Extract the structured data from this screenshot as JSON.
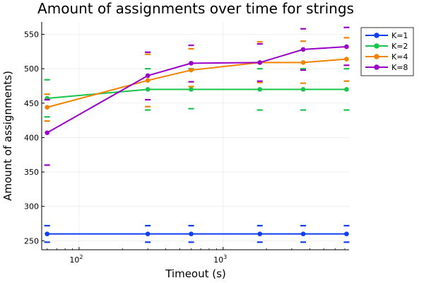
{
  "chart_data": {
    "type": "line",
    "title": "Amount of assignments over time for strings",
    "xlabel": "Timeout (s)",
    "ylabel": "Amount of assignments)",
    "xscale": "log",
    "xlim": [
      55,
      7500
    ],
    "ylim": [
      237,
      568
    ],
    "x": [
      60,
      300,
      600,
      1800,
      3600,
      7200
    ],
    "x_ticks": [
      {
        "value": 100,
        "base": "10",
        "exp": "2"
      },
      {
        "value": 1000,
        "base": "10",
        "exp": "3"
      }
    ],
    "y_ticks": [
      250,
      300,
      350,
      400,
      450,
      500,
      550
    ],
    "grid": true,
    "legend_position": "top-right",
    "series": [
      {
        "name": "K=1",
        "color": "#0f3ff2",
        "values": [
          260,
          260,
          260,
          260,
          260,
          260
        ],
        "upper": [
          272,
          272,
          272,
          272,
          272,
          272
        ],
        "lower": [
          248,
          248,
          248,
          248,
          248,
          248
        ]
      },
      {
        "name": "K=2",
        "color": "#19c44a",
        "values": [
          457,
          470,
          470,
          470,
          470,
          470
        ],
        "upper": [
          484,
          500,
          500,
          500,
          500,
          500
        ],
        "lower": [
          430,
          440,
          442,
          440,
          440,
          440
        ]
      },
      {
        "name": "K=4",
        "color": "#f28300",
        "values": [
          444,
          483,
          498,
          509,
          509,
          514
        ],
        "upper": [
          463,
          521,
          529,
          539,
          540,
          545
        ],
        "lower": [
          424,
          445,
          474,
          480,
          479,
          482
        ]
      },
      {
        "name": "K=8",
        "color": "#9b00c9",
        "values": [
          407,
          490,
          508,
          509,
          528,
          532
        ],
        "upper": [
          455,
          524,
          534,
          536,
          558,
          560
        ],
        "lower": [
          360,
          455,
          481,
          482,
          498,
          505
        ]
      }
    ]
  }
}
